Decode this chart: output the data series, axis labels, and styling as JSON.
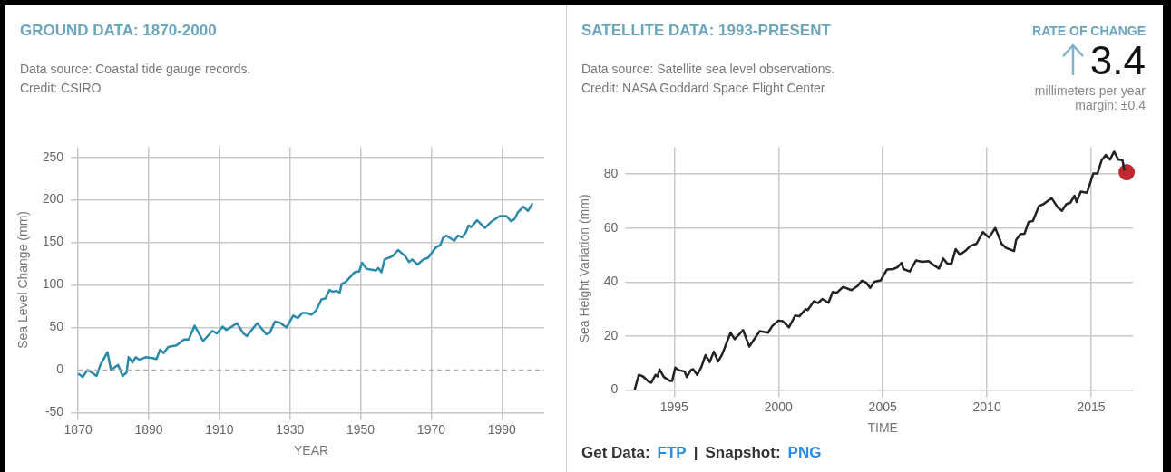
{
  "chart_data": [
    {
      "type": "line",
      "title": "GROUND DATA: 1870-2000",
      "subtitle": "Data source: Coastal tide gauge records.",
      "annotations": [
        "Credit: CSIRO"
      ],
      "xlabel": "YEAR",
      "ylabel": "Sea Level Change (mm)",
      "xlim": [
        1870,
        2002
      ],
      "ylim": [
        -50,
        262
      ],
      "xticks": [
        1870,
        1890,
        1910,
        1930,
        1950,
        1970,
        1990
      ],
      "yticks": [
        -50,
        0,
        50,
        100,
        150,
        200,
        250
      ],
      "grid": true,
      "legend": false,
      "marker": "none",
      "ref_lines": [
        {
          "axis": "y",
          "value": 0,
          "line_style": "dashed",
          "color": "#aaaaaa"
        }
      ],
      "series": [
        {
          "color": "#2a8aa8",
          "x": [
            1870,
            1871.3,
            1872.6,
            1873.9,
            1875.2,
            1876.3,
            1878.3,
            1879.3,
            1881.3,
            1882.6,
            1883.7,
            1884.3,
            1885.4,
            1886.3,
            1887.4,
            1889.1,
            1891,
            1892.2,
            1893.2,
            1894.2,
            1895.5,
            1897.8,
            1900,
            1901.3,
            1903,
            1905.4,
            1908,
            1909.3,
            1910.9,
            1912,
            1915,
            1916.8,
            1917.8,
            1920.7,
            1923.3,
            1924.3,
            1925.7,
            1927,
            1929,
            1930.9,
            1932.2,
            1933.5,
            1934.8,
            1936.1,
            1937.4,
            1938.9,
            1940,
            1941.2,
            1942,
            1943.1,
            1944.1,
            1944.6,
            1945.9,
            1948.3,
            1949.6,
            1950.4,
            1951.7,
            1954.3,
            1955,
            1955.9,
            1956.8,
            1959.1,
            1960.6,
            1962.6,
            1963.7,
            1964.6,
            1966.1,
            1967.8,
            1969.1,
            1971.3,
            1972.6,
            1973.3,
            1974.3,
            1976.5,
            1977.6,
            1978.7,
            1979.7,
            1980.6,
            1981.3,
            1983,
            1985.2,
            1986.9,
            1989.4,
            1991.3,
            1992.6,
            1993.5,
            1994.5,
            1996.1,
            1997.4,
            1998.7
          ],
          "values": [
            -4,
            -8,
            0,
            -3,
            -7,
            6,
            21,
            0,
            6,
            -7,
            -3,
            15,
            9,
            15,
            12,
            15,
            14,
            13,
            24,
            20,
            27,
            29,
            36,
            36,
            52,
            34,
            46,
            43,
            51,
            47,
            55,
            43,
            40,
            55,
            42,
            44,
            57,
            56,
            50,
            64,
            61,
            67,
            67,
            65,
            70,
            83,
            84,
            94,
            92,
            93,
            91,
            101,
            104,
            115,
            116,
            126,
            119,
            117,
            120,
            115,
            130,
            134,
            141,
            134,
            127,
            130,
            124,
            130,
            132,
            144,
            147,
            155,
            158,
            152,
            158,
            156,
            161,
            170,
            168,
            176,
            167,
            174,
            181,
            181,
            175,
            177,
            185,
            192,
            187,
            196
          ]
        }
      ]
    },
    {
      "type": "line",
      "title": "SATELLITE DATA: 1993-PRESENT",
      "subtitle": "Data source: Satellite sea level observations.",
      "annotations": [
        "Credit: NASA Goddard Space Flight Center",
        "RATE OF CHANGE",
        "3.4",
        "millimeters per year",
        "margin: ±0.4",
        "Get Data:",
        "FTP",
        "|",
        "Snapshot:",
        "PNG"
      ],
      "xlabel": "TIME",
      "ylabel": "Sea Height Variation (mm)",
      "xlim": [
        1993,
        2017
      ],
      "ylim": [
        0,
        90
      ],
      "xticks": [
        1995,
        2000,
        2005,
        2010,
        2015
      ],
      "yticks": [
        0,
        20,
        40,
        60,
        80
      ],
      "grid": true,
      "legend": false,
      "series": [
        {
          "color": "#222222",
          "marker": "none",
          "x": [
            1993.1,
            1993.3,
            1993.5,
            1993.8,
            1993.9,
            1994.1,
            1994.2,
            1994.3,
            1994.5,
            1994.8,
            1994.9,
            1995.05,
            1995.2,
            1995.5,
            1995.6,
            1995.8,
            1995.9,
            1996.1,
            1996.3,
            1996.5,
            1996.7,
            1996.9,
            1997.1,
            1997.3,
            1997.7,
            1997.9,
            1998.3,
            1998.6,
            1999.1,
            1999.5,
            1999.7,
            2000,
            2000.2,
            2000.5,
            2000.8,
            2001,
            2001.3,
            2001.4,
            2001.7,
            2001.9,
            2002.1,
            2002.4,
            2002.6,
            2002.8,
            2003.1,
            2003.5,
            2003.8,
            2004,
            2004.2,
            2004.4,
            2004.6,
            2004.9,
            2005.2,
            2005.5,
            2005.7,
            2005.9,
            2006,
            2006.3,
            2006.6,
            2006.9,
            2007.2,
            2007.5,
            2007.7,
            2007.9,
            2008.1,
            2008.3,
            2008.5,
            2008.7,
            2009,
            2009.2,
            2009.5,
            2009.8,
            2010.1,
            2010.2,
            2010.4,
            2010.7,
            2010.9,
            2011.3,
            2011.4,
            2011.6,
            2011.8,
            2012,
            2012.2,
            2012.5,
            2012.7,
            2013.1,
            2013.4,
            2013.6,
            2013.8,
            2014,
            2014.2,
            2014.3,
            2014.5,
            2014.8,
            2015.1,
            2015.3,
            2015.5,
            2015.7,
            2015.9,
            2016.1,
            2016.3,
            2016.5,
            2016.6
          ],
          "values": [
            0,
            5.6,
            5,
            2.9,
            2.7,
            5.6,
            5,
            7.6,
            4.8,
            3.3,
            3.3,
            8.3,
            7.4,
            6.8,
            4.8,
            7.4,
            7.7,
            5.6,
            8.5,
            12.9,
            10.3,
            14.2,
            10.5,
            13.2,
            21.2,
            18.8,
            22.2,
            16.1,
            21.8,
            21.2,
            23.7,
            25.7,
            25.5,
            23.2,
            27.6,
            27.3,
            29.9,
            29.6,
            32.9,
            32.2,
            33.7,
            32.3,
            36.3,
            36,
            38.2,
            37,
            38.6,
            40.5,
            39.8,
            37.8,
            40.1,
            40.6,
            44.6,
            44.8,
            45.4,
            47.1,
            44.8,
            43.9,
            48,
            47.5,
            47.7,
            46,
            45,
            48.7,
            46.8,
            46.8,
            52.2,
            50.1,
            51.8,
            53.3,
            54.2,
            58.5,
            56.5,
            57.7,
            60,
            54.2,
            52.7,
            51.5,
            55.6,
            57.7,
            57.9,
            62.3,
            62.6,
            68.2,
            68.8,
            71.1,
            67.6,
            66.4,
            68.8,
            69.4,
            72,
            69.6,
            73.5,
            73.1,
            80.2,
            80.2,
            85.1,
            87.1,
            85.4,
            88.3,
            85.4,
            85.1,
            81.3
          ]
        },
        {
          "type": "scatter",
          "color": "#c0282d",
          "marker": "circle",
          "x": [
            2016.7
          ],
          "values": [
            80.7
          ]
        }
      ]
    }
  ]
}
